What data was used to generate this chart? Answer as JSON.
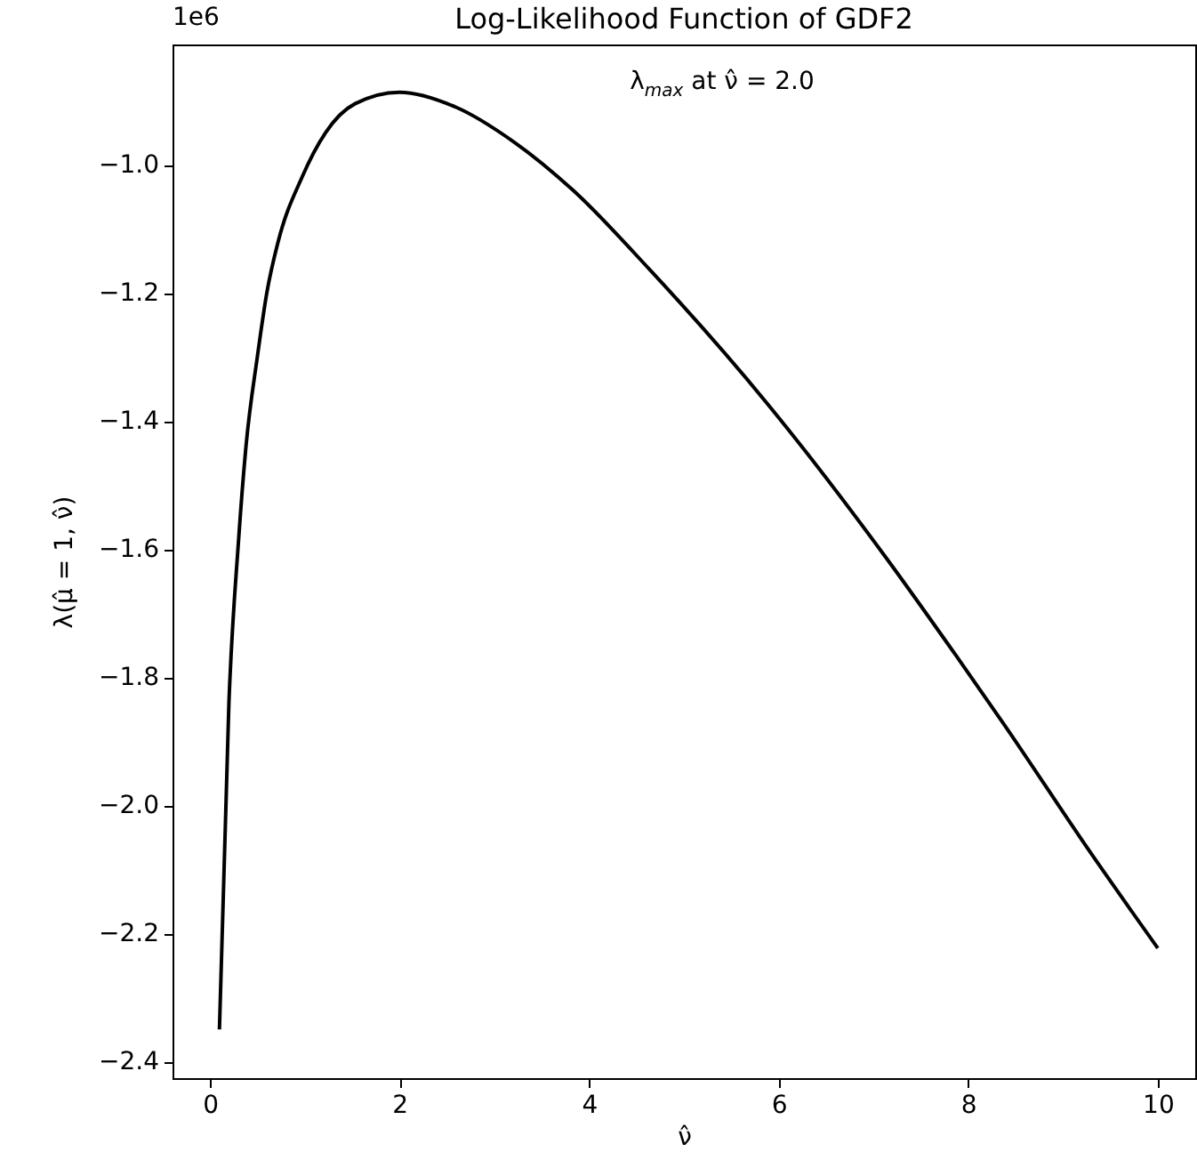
{
  "chart_data": {
    "type": "line",
    "title": "Log-Likelihood Function of GDF2",
    "xlabel": "ν̂",
    "ylabel": "λ(μ̂ = 1, ν̂)",
    "annotations": [
      "1e6",
      "λ$_{max}$ at ν̂ = 2.0"
    ],
    "x": [
      0.1,
      0.2,
      0.3,
      0.38,
      0.5,
      0.6,
      0.72,
      0.97,
      1.22,
      1.53,
      2.0,
      2.59,
      3.21,
      3.83,
      4.64,
      5.88,
      7.13,
      7.87,
      8.37,
      9.3,
      10
    ],
    "series": [
      {
        "color": "#000000",
        "line_style": "solid",
        "values": [
          -2.35,
          -1.84,
          -1.59,
          -1.44,
          -1.3,
          -1.2,
          -1.12,
          -1.02,
          -0.95,
          -0.905,
          -0.887,
          -0.91,
          -0.965,
          -1.04,
          -1.164,
          -1.373,
          -1.613,
          -1.766,
          -1.872,
          -2.076,
          -2.223
        ]
      }
    ],
    "xlim": [
      -0.395,
      10.395
    ],
    "xticks": [
      0,
      2,
      4,
      6,
      8,
      10
    ],
    "ylim": [
      -2.426,
      -0.8125
    ],
    "yticks": [
      {
        "value": -2.4,
        "label": "−2.4"
      },
      {
        "value": -2.2,
        "label": "−2.2"
      },
      {
        "value": -2.0,
        "label": "−2.0"
      },
      {
        "value": -1.8,
        "label": "−1.8"
      },
      {
        "value": -1.6,
        "label": "−1.6"
      },
      {
        "value": -1.4,
        "label": "−1.4"
      },
      {
        "value": -1.2,
        "label": "−1.2"
      },
      {
        "value": -1.0,
        "label": "−1.0"
      }
    ],
    "grid": false
  }
}
